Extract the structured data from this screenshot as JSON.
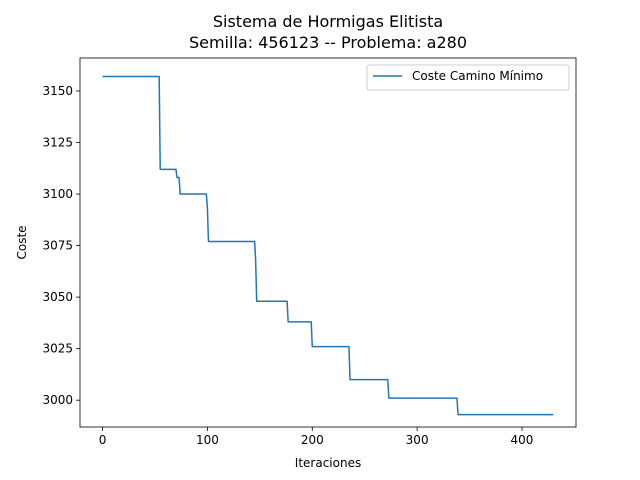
{
  "chart_data": {
    "type": "line",
    "title": "Sistema de Hormigas Elitista",
    "subtitle": "Semilla: 456123 -- Problema: a280",
    "xlabel": "Iteraciones",
    "ylabel": "Coste",
    "xlim": [
      -21.5,
      451.5
    ],
    "ylim": [
      2987,
      3166
    ],
    "xticks": [
      0,
      100,
      200,
      300,
      400
    ],
    "yticks": [
      3000,
      3025,
      3050,
      3075,
      3100,
      3125,
      3150
    ],
    "grid": false,
    "legend": {
      "placement": "top-right",
      "entries": [
        "Coste Camino Mínimo"
      ]
    },
    "series": [
      {
        "name": "Coste Camino Mínimo",
        "color": "#1f77b4",
        "points": [
          [
            0,
            3157
          ],
          [
            54,
            3157
          ],
          [
            55,
            3112
          ],
          [
            70,
            3112
          ],
          [
            71,
            3108
          ],
          [
            72,
            3108
          ],
          [
            73,
            3108
          ],
          [
            74,
            3100
          ],
          [
            99,
            3100
          ],
          [
            100,
            3093
          ],
          [
            101,
            3077
          ],
          [
            145,
            3077
          ],
          [
            146,
            3068
          ],
          [
            147,
            3048
          ],
          [
            176,
            3048
          ],
          [
            177,
            3038
          ],
          [
            199,
            3038
          ],
          [
            200,
            3026
          ],
          [
            235,
            3026
          ],
          [
            236,
            3010
          ],
          [
            272,
            3010
          ],
          [
            273,
            3001
          ],
          [
            338,
            3001
          ],
          [
            339,
            2993
          ],
          [
            430,
            2993
          ]
        ]
      }
    ]
  }
}
